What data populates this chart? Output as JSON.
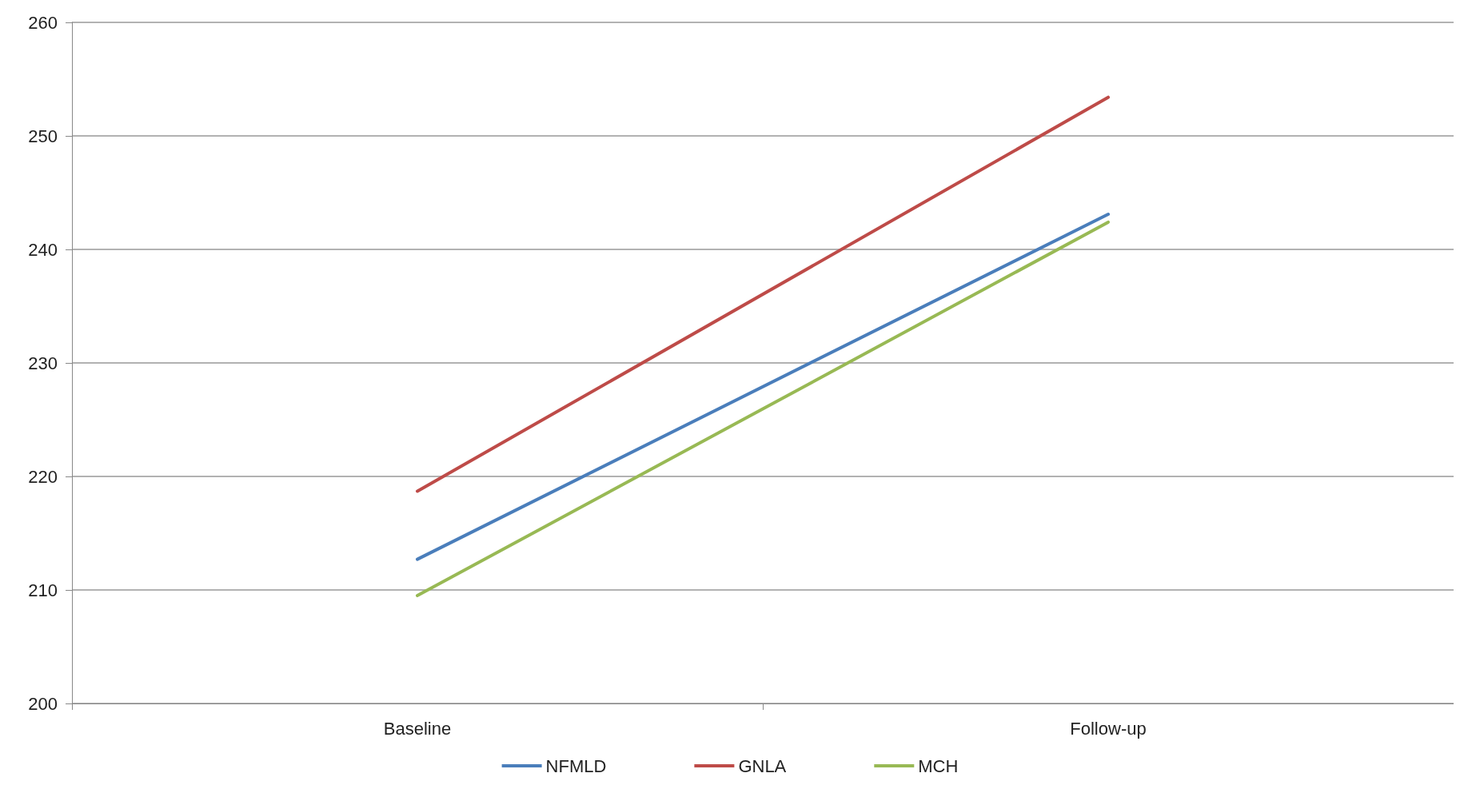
{
  "chart_data": {
    "type": "line",
    "categories": [
      "Baseline",
      "Follow-up"
    ],
    "series": [
      {
        "name": "NFMLD",
        "color": "#4a7ebb",
        "values": [
          212.7,
          243.1
        ]
      },
      {
        "name": "GNLA",
        "color": "#be4b48",
        "values": [
          218.7,
          253.4
        ]
      },
      {
        "name": "MCH",
        "color": "#98b954",
        "values": [
          209.5,
          242.4
        ]
      }
    ],
    "ylim": [
      200,
      260
    ],
    "yticks": [
      200,
      210,
      220,
      230,
      240,
      250,
      260
    ],
    "grid": "y",
    "legend": "bottom",
    "marker": "none",
    "line_style": "solid"
  }
}
